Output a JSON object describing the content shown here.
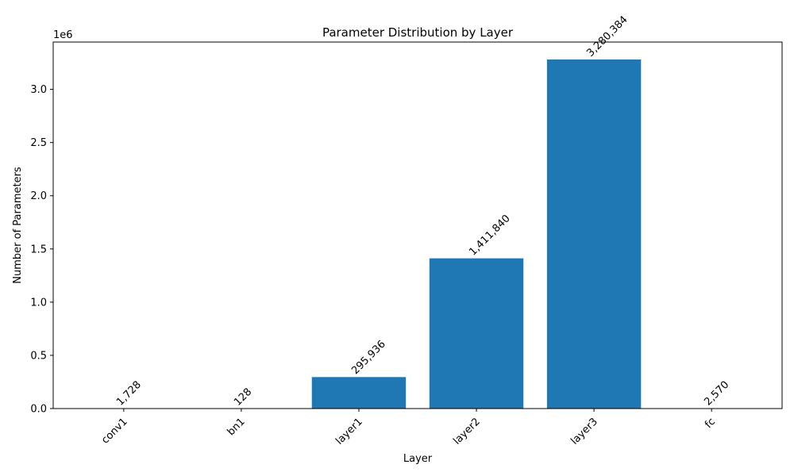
{
  "chart_data": {
    "type": "bar",
    "title": "Parameter Distribution by Layer",
    "xlabel": "Layer",
    "ylabel": "Number of Parameters",
    "y_offset_text": "1e6",
    "categories": [
      "conv1",
      "bn1",
      "layer1",
      "layer2",
      "layer3",
      "fc"
    ],
    "values": [
      1728,
      128,
      295936,
      1411840,
      3280384,
      2570
    ],
    "value_labels": [
      "1,728",
      "128",
      "295,936",
      "1,411,840",
      "3,280,384",
      "2,570"
    ],
    "ylim": [
      0,
      3444403
    ],
    "yticks": [
      0,
      500000,
      1000000,
      1500000,
      2000000,
      2500000,
      3000000
    ],
    "ytick_labels": [
      "0.0",
      "0.5",
      "1.0",
      "1.5",
      "2.0",
      "2.5",
      "3.0"
    ],
    "bar_color": "#1f77b4",
    "grid": false,
    "legend": "none"
  }
}
